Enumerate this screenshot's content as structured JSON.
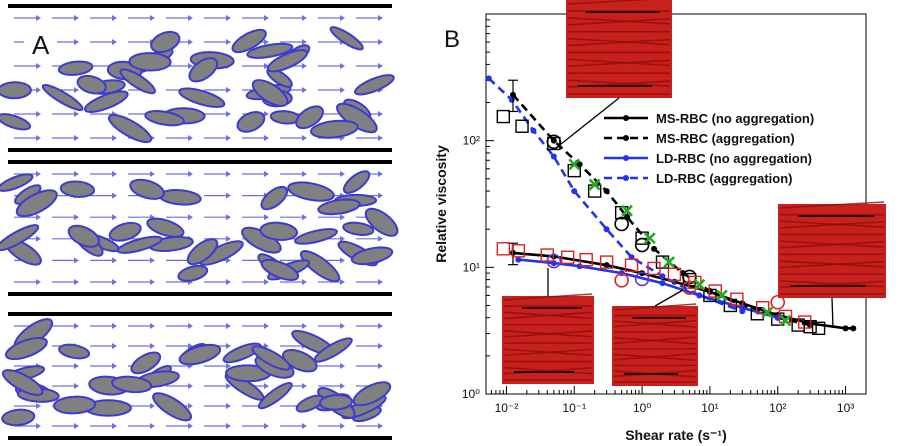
{
  "panel_a": {
    "label": "A"
  },
  "panel_b": {
    "label": "B"
  },
  "chart_data": {
    "type": "line",
    "xlabel": "Shear rate (s⁻¹)",
    "ylabel": "Relative viscosity",
    "x_scale": "log",
    "y_scale": "log",
    "xlim": [
      0.005,
      2000
    ],
    "ylim": [
      1,
      1000
    ],
    "x_ticks": [
      {
        "value": 0.01,
        "label": "10⁻²"
      },
      {
        "value": 0.1,
        "label": "10⁻¹"
      },
      {
        "value": 1,
        "label": "10⁰"
      },
      {
        "value": 10,
        "label": "10¹"
      },
      {
        "value": 100,
        "label": "10²"
      },
      {
        "value": 1000,
        "label": "10³"
      }
    ],
    "y_ticks": [
      {
        "value": 1,
        "label": "10⁰"
      },
      {
        "value": 10,
        "label": "10¹"
      },
      {
        "value": 100,
        "label": "10²"
      }
    ],
    "legend_position": "top-right",
    "series": [
      {
        "name": "MS-RBC (no aggregation)",
        "color": "#000000",
        "dash": "solid",
        "x": [
          0.0125,
          0.05,
          0.3,
          1,
          3,
          10,
          30,
          100,
          300,
          1000,
          1300
        ],
        "y": [
          13,
          12.2,
          10.4,
          9,
          7.7,
          6.4,
          5.2,
          4.2,
          3.6,
          3.3,
          3.3
        ]
      },
      {
        "name": "MS-RBC (aggregation)",
        "color": "#000000",
        "dash": "dashed",
        "x": [
          0.0125,
          0.05,
          0.12,
          0.3,
          0.6,
          1.5,
          4,
          10,
          30,
          100,
          300
        ],
        "y": [
          230,
          100,
          65,
          40,
          25,
          14,
          9,
          6.5,
          5,
          4,
          3.5
        ]
      },
      {
        "name": "LD-RBC (no aggregation)",
        "color": "#2233ee",
        "dash": "solid",
        "x": [
          0.015,
          0.05,
          0.12,
          0.5,
          2,
          7,
          30,
          100
        ],
        "y": [
          11.5,
          10.8,
          10.2,
          9,
          7.5,
          6,
          4.8,
          4
        ]
      },
      {
        "name": "LD-RBC (aggregation)",
        "color": "#2233ee",
        "dash": "dashed",
        "x": [
          0.0055,
          0.012,
          0.025,
          0.05,
          0.1,
          0.3,
          0.7,
          2,
          7,
          30
        ],
        "y": [
          310,
          210,
          120,
          75,
          40,
          20,
          12,
          8.5,
          6,
          4.5
        ]
      }
    ],
    "error_bar": {
      "x": 0.0125,
      "y": 230,
      "ylow": 170,
      "yhigh": 300,
      "low_point": {
        "x": 0.0125,
        "y": 13,
        "ylow": 10.5,
        "yhigh": 15.5
      }
    },
    "markers": [
      {
        "shape": "square",
        "color": "#000000",
        "points": [
          [
            0.009,
            155
          ],
          [
            0.017,
            130
          ],
          [
            0.05,
            95
          ],
          [
            0.1,
            58
          ],
          [
            0.2,
            40
          ],
          [
            0.5,
            27
          ],
          [
            1,
            17
          ],
          [
            2,
            11
          ],
          [
            5,
            8
          ],
          [
            10,
            6
          ],
          [
            20,
            5
          ],
          [
            50,
            4.3
          ],
          [
            100,
            3.9
          ],
          [
            200,
            3.5
          ],
          [
            300,
            3.4
          ],
          [
            400,
            3.3
          ]
        ]
      },
      {
        "shape": "circle",
        "color": "#000000",
        "points": [
          [
            0.05,
            98
          ],
          [
            0.5,
            22
          ],
          [
            1,
            15
          ],
          [
            5,
            8.4
          ]
        ]
      },
      {
        "shape": "square",
        "color": "#dd2222",
        "points": [
          [
            0.009,
            14
          ],
          [
            0.015,
            13.5
          ],
          [
            0.04,
            12.5
          ],
          [
            0.08,
            12
          ],
          [
            0.15,
            11.5
          ],
          [
            0.3,
            11
          ],
          [
            0.7,
            10.4
          ],
          [
            1.5,
            9.8
          ],
          [
            3,
            8.8
          ],
          [
            6,
            7.6
          ],
          [
            12,
            6.5
          ],
          [
            25,
            5.6
          ],
          [
            60,
            4.8
          ],
          [
            130,
            4.1
          ],
          [
            250,
            3.7
          ]
        ]
      },
      {
        "shape": "circle",
        "color": "#dd2222",
        "points": [
          [
            0.5,
            7.9
          ],
          [
            5,
            6.9
          ],
          [
            100,
            5.3
          ]
        ]
      },
      {
        "shape": "circle",
        "color": "#6633cc",
        "points": [
          [
            0.05,
            11.2
          ],
          [
            1,
            8.1
          ]
        ]
      },
      {
        "shape": "x",
        "color": "#22aa22",
        "points": [
          [
            0.1,
            65
          ],
          [
            0.2,
            45
          ],
          [
            0.6,
            28
          ],
          [
            1.3,
            17
          ],
          [
            2.5,
            11
          ],
          [
            7,
            7.3
          ],
          [
            15,
            6
          ],
          [
            70,
            4.4
          ],
          [
            130,
            3.8
          ]
        ]
      }
    ],
    "insets": [
      {
        "anchor": [
          0.05,
          100
        ],
        "arrows": [
          "top-right",
          "bottom-left"
        ]
      },
      {
        "anchor": [
          0.013,
          12
        ],
        "arrows": [
          "top-left"
        ]
      },
      {
        "anchor": [
          5,
          7.9
        ],
        "arrows": [
          "top-right"
        ]
      },
      {
        "anchor": [
          400,
          3.4
        ],
        "arrows": [
          "top-right",
          "bottom-left"
        ]
      }
    ]
  }
}
